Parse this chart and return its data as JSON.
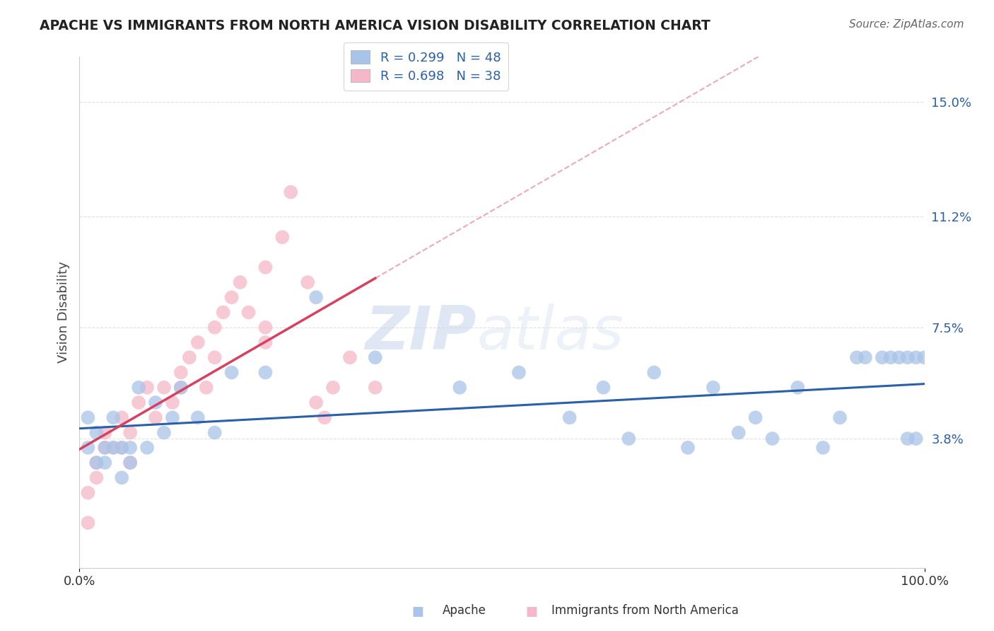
{
  "title": "APACHE VS IMMIGRANTS FROM NORTH AMERICA VISION DISABILITY CORRELATION CHART",
  "source": "Source: ZipAtlas.com",
  "ylabel": "Vision Disability",
  "xlim": [
    0,
    100
  ],
  "ylim": [
    -0.5,
    16.5
  ],
  "yticks": [
    3.8,
    7.5,
    11.2,
    15.0
  ],
  "ytick_labels": [
    "3.8%",
    "7.5%",
    "11.2%",
    "15.0%"
  ],
  "xticks": [
    0,
    100
  ],
  "xtick_labels": [
    "0.0%",
    "100.0%"
  ],
  "apache_R": 0.299,
  "apache_N": 48,
  "immigrants_R": 0.698,
  "immigrants_N": 38,
  "apache_color": "#a8c4e8",
  "immigrants_color": "#f5b8c8",
  "apache_line_color": "#2a5faa",
  "immigrants_line_color": "#d94060",
  "background_color": "#ffffff",
  "grid_color": "#e0e0e0",
  "watermark_color": "#d0dff0",
  "apache_x": [
    1,
    1,
    2,
    2,
    3,
    3,
    4,
    4,
    5,
    5,
    6,
    6,
    7,
    8,
    9,
    10,
    11,
    12,
    14,
    16,
    18,
    22,
    28,
    35,
    45,
    52,
    58,
    62,
    65,
    68,
    72,
    75,
    78,
    80,
    82,
    85,
    88,
    90,
    92,
    93,
    95,
    96,
    97,
    98,
    98,
    99,
    99,
    100
  ],
  "apache_y": [
    3.5,
    4.5,
    3.0,
    4.0,
    3.0,
    3.5,
    3.5,
    4.5,
    2.5,
    3.5,
    3.0,
    3.5,
    5.5,
    3.5,
    5.0,
    4.0,
    4.5,
    5.5,
    4.5,
    4.0,
    6.0,
    6.0,
    8.5,
    6.5,
    5.5,
    6.0,
    4.5,
    5.5,
    3.8,
    6.0,
    3.5,
    5.5,
    4.0,
    4.5,
    3.8,
    5.5,
    3.5,
    4.5,
    6.5,
    6.5,
    6.5,
    6.5,
    6.5,
    6.5,
    3.8,
    3.8,
    6.5,
    6.5
  ],
  "immigrants_x": [
    1,
    1,
    2,
    2,
    3,
    3,
    4,
    5,
    5,
    6,
    6,
    7,
    8,
    9,
    10,
    11,
    12,
    13,
    14,
    15,
    16,
    17,
    18,
    19,
    20,
    22,
    22,
    24,
    25,
    27,
    28,
    29,
    30,
    32,
    35,
    22,
    16,
    12
  ],
  "immigrants_y": [
    1.0,
    2.0,
    2.5,
    3.0,
    3.5,
    4.0,
    3.5,
    4.5,
    3.5,
    3.0,
    4.0,
    5.0,
    5.5,
    4.5,
    5.5,
    5.0,
    6.0,
    6.5,
    7.0,
    5.5,
    7.5,
    8.0,
    8.5,
    9.0,
    8.0,
    7.5,
    9.5,
    10.5,
    12.0,
    9.0,
    5.0,
    4.5,
    5.5,
    6.5,
    5.5,
    7.0,
    6.5,
    5.5
  ],
  "im_line_solid_end": 35,
  "im_line_dash_end": 100
}
